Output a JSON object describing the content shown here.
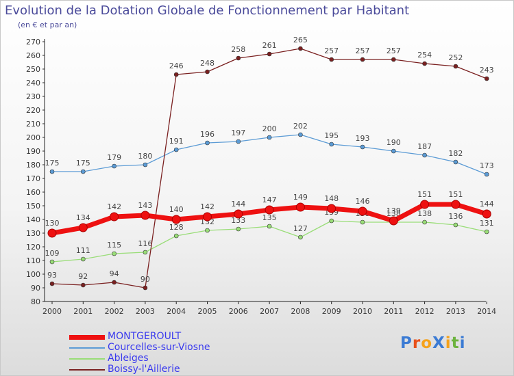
{
  "title": "Evolution de la Dotation Globale de Fonctionnement par Habitant",
  "subtitle": "(en € et par an)",
  "logo": {
    "text": "ProXiti",
    "letter_colors": [
      "#3b7bd4",
      "#e8501a",
      "#f5a21b",
      "#3b7bd4",
      "#f5a21b",
      "#6db33f",
      "#3b7bd4"
    ]
  },
  "chart_data": {
    "type": "line",
    "title": "Evolution de la Dotation Globale de Fonctionnement par Habitant",
    "subtitle": "(en € et par an)",
    "xlabel": "",
    "ylabel": "",
    "ylim": [
      80,
      270
    ],
    "ytick_step": 10,
    "grid": false,
    "legend_position": "bottom-left",
    "x": [
      2000,
      2001,
      2002,
      2003,
      2004,
      2005,
      2006,
      2007,
      2008,
      2009,
      2010,
      2011,
      2012,
      2013,
      2014
    ],
    "series": [
      {
        "name": "MONTGEROULT",
        "color": "#ee1111",
        "legend_color": "#3a3aee",
        "style": "thick",
        "values": [
          130,
          134,
          142,
          143,
          140,
          142,
          144,
          147,
          149,
          148,
          146,
          139,
          151,
          151,
          144
        ]
      },
      {
        "name": "Courcelles-sur-Viosne",
        "color": "#5b9bd5",
        "legend_color": "#3a3aee",
        "style": "thin",
        "values": [
          175,
          175,
          179,
          180,
          191,
          196,
          197,
          200,
          202,
          195,
          193,
          190,
          187,
          182,
          173
        ]
      },
      {
        "name": "Ableiges",
        "color": "#99dd77",
        "legend_color": "#3a3aee",
        "style": "thin",
        "values": [
          109,
          111,
          115,
          116,
          128,
          132,
          133,
          135,
          127,
          139,
          138,
          138,
          138,
          136,
          131
        ]
      },
      {
        "name": "Boissy-l'Aillerie",
        "color": "#7a2020",
        "legend_color": "#3a3aee",
        "style": "thin",
        "values": [
          93,
          92,
          94,
          90,
          246,
          248,
          258,
          261,
          265,
          257,
          257,
          257,
          254,
          252,
          243
        ]
      }
    ]
  }
}
